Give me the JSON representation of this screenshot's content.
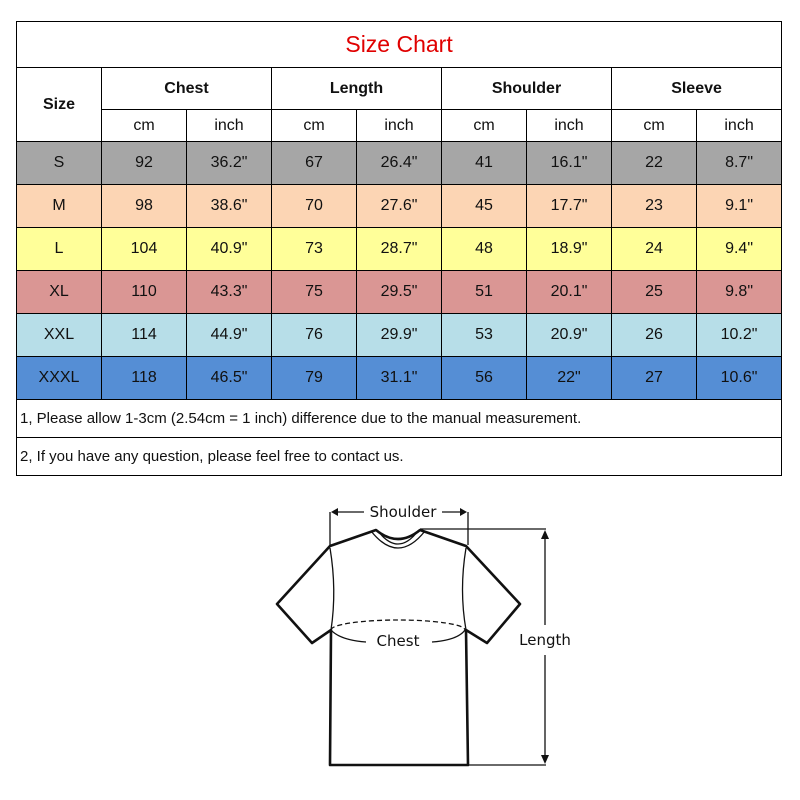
{
  "title": "Size Chart",
  "headers": {
    "size": "Size",
    "groups": [
      "Chest",
      "Length",
      "Shoulder",
      "Sleeve"
    ],
    "units": [
      "cm",
      "inch",
      "cm",
      "inch",
      "cm",
      "inch",
      "cm",
      "inch"
    ]
  },
  "rows": [
    {
      "size": "S",
      "color": "#a6a6a6",
      "values": [
        "92",
        "36.2\"",
        "67",
        "26.4\"",
        "41",
        "16.1\"",
        "22",
        "8.7\""
      ]
    },
    {
      "size": "M",
      "color": "#fcd5b4",
      "values": [
        "98",
        "38.6\"",
        "70",
        "27.6\"",
        "45",
        "17.7\"",
        "23",
        "9.1\""
      ]
    },
    {
      "size": "L",
      "color": "#ffff99",
      "values": [
        "104",
        "40.9\"",
        "73",
        "28.7\"",
        "48",
        "18.9\"",
        "24",
        "9.4\""
      ]
    },
    {
      "size": "XL",
      "color": "#da9694",
      "values": [
        "110",
        "43.3\"",
        "75",
        "29.5\"",
        "51",
        "20.1\"",
        "25",
        "9.8\""
      ]
    },
    {
      "size": "XXL",
      "color": "#b7dee8",
      "values": [
        "114",
        "44.9\"",
        "76",
        "29.9\"",
        "53",
        "20.9\"",
        "26",
        "10.2\""
      ]
    },
    {
      "size": "XXXL",
      "color": "#558ed5",
      "values": [
        "118",
        "46.5\"",
        "79",
        "31.1\"",
        "56",
        "22\"",
        "27",
        "10.6\""
      ]
    }
  ],
  "notes": [
    "1, Please allow 1-3cm (2.54cm = 1 inch) difference due to the manual measurement.",
    "2, If you have any question, please feel free to contact us."
  ],
  "diagram": {
    "shoulder": "Shoulder",
    "chest": "Chest",
    "length": "Length"
  }
}
